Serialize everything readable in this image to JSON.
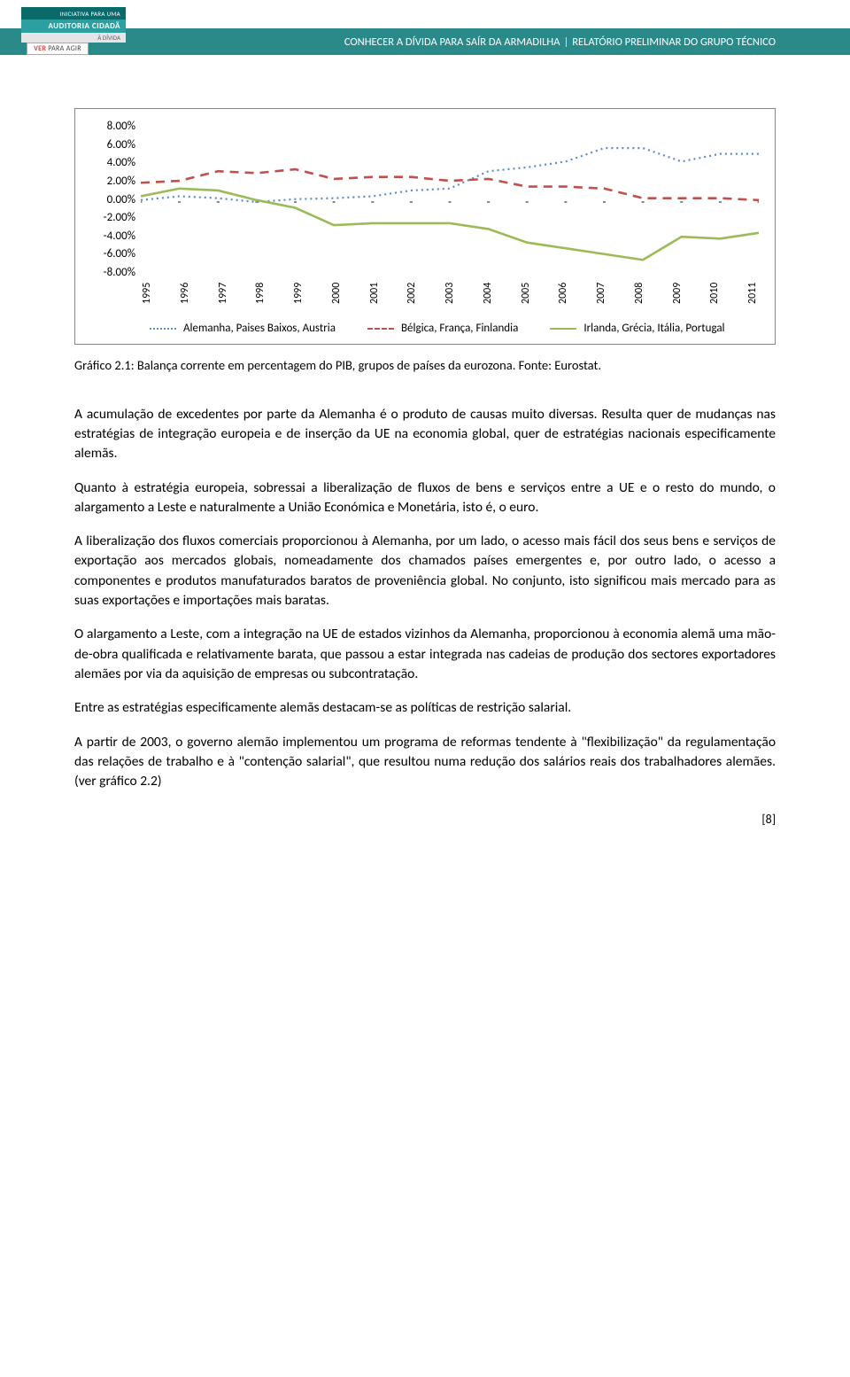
{
  "header": {
    "title_left": "CONHECER A DÍVIDA PARA SAÍR DA ARMADILHA",
    "title_right": "RELATÓRIO PRELIMINAR DO GRUPO TÉCNICO",
    "logo_line1": "INICIATIVA PARA UMA",
    "logo_line2": "AUDITORIA CIDADÃ",
    "logo_line3": "À DÍVIDA",
    "logo_line4": "VER PARA AGIR"
  },
  "chart": {
    "type": "line",
    "y_ticks": [
      "8.00%",
      "6.00%",
      "4.00%",
      "2.00%",
      "0.00%",
      "-2.00%",
      "-4.00%",
      "-6.00%",
      "-8.00%"
    ],
    "x_ticks": [
      "1995",
      "1996",
      "1997",
      "1998",
      "1999",
      "2000",
      "2001",
      "2002",
      "2003",
      "2004",
      "2005",
      "2006",
      "2007",
      "2008",
      "2009",
      "2010",
      "2011"
    ],
    "ylim": [
      -8,
      8
    ],
    "series": [
      {
        "name": "Alemanha, Paises Baixos, Austria",
        "style": "dotted",
        "color": "#5a8cc9",
        "width": 2.2,
        "values": [
          0.2,
          0.6,
          0.4,
          0.0,
          0.3,
          0.4,
          0.6,
          1.2,
          1.4,
          3.2,
          3.6,
          4.2,
          5.6,
          5.6,
          4.2,
          5.0,
          5.0
        ]
      },
      {
        "name": "Bélgica, França, Finlandia",
        "style": "dashed",
        "color": "#c0504d",
        "width": 2.6,
        "values": [
          2.0,
          2.2,
          3.2,
          3.0,
          3.4,
          2.4,
          2.6,
          2.6,
          2.2,
          2.4,
          1.6,
          1.6,
          1.4,
          0.4,
          0.4,
          0.4,
          0.2
        ]
      },
      {
        "name": "Irlanda, Grécia, Itália, Portugal",
        "style": "solid",
        "color": "#9bbb59",
        "width": 2.6,
        "values": [
          0.6,
          1.4,
          1.2,
          0.2,
          -0.6,
          -2.4,
          -2.2,
          -2.2,
          -2.2,
          -2.8,
          -4.2,
          -4.8,
          -5.4,
          -6.0,
          -3.6,
          -3.8,
          -3.2
        ]
      }
    ],
    "background_color": "#ffffff",
    "tick_fontsize": 12,
    "border_color": "#888888"
  },
  "caption": "Gráfico 2.1: Balança corrente em percentagem do PIB, grupos de países da eurozona. Fonte: Eurostat.",
  "paragraphs": [
    "A acumulação de excedentes por parte da Alemanha é o produto de causas muito diversas. Resulta quer de mudanças nas estratégias de integração europeia e de inserção da UE na economia global, quer de estratégias nacionais especificamente alemãs.",
    "Quanto à estratégia europeia, sobressai a liberalização de fluxos de bens e serviços entre a UE e o resto do mundo, o alargamento a Leste e naturalmente a União Económica e Monetária, isto é, o euro.",
    "A liberalização dos fluxos comerciais proporcionou à Alemanha, por um lado, o acesso mais fácil dos seus bens e serviços de exportação aos mercados globais, nomeadamente dos chamados países emergentes e, por outro lado, o acesso a componentes e produtos manufaturados baratos de proveniência global. No conjunto, isto significou mais mercado para as suas exportações e importações mais baratas.",
    "O alargamento a Leste, com a integração na UE de estados vizinhos da Alemanha, proporcionou à economia alemã uma mão-de-obra qualificada e relativamente barata, que passou a estar integrada nas cadeias de produção dos sectores exportadores alemães por via da aquisição de empresas ou subcontratação.",
    "Entre as estratégias especificamente alemãs destacam-se as políticas de restrição salarial.",
    "A partir de 2003, o governo alemão implementou um programa de reformas tendente à \"flexibilização\" da regulamentação das relações de trabalho e à \"contenção salarial\", que resultou numa redução dos salários reais dos trabalhadores alemães. (ver gráfico 2.2)"
  ],
  "page_number": "[8]"
}
